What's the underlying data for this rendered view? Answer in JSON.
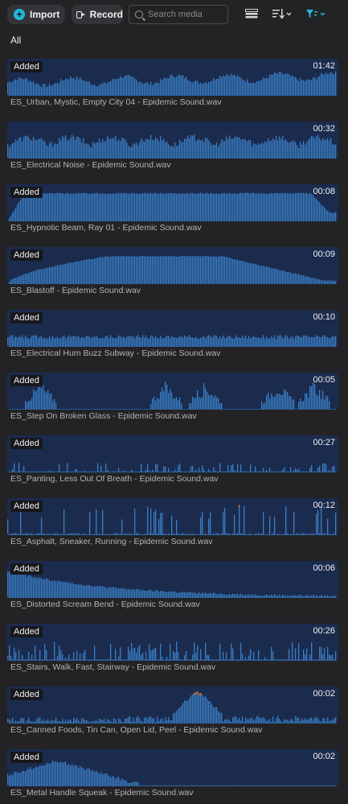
{
  "toolbar": {
    "import_label": "Import",
    "record_label": "Record",
    "search_placeholder": "Search media"
  },
  "section_label": "All",
  "colors": {
    "wave": "#3a7fc4",
    "peak": "#e07a3a",
    "wave_bg": "#1b2b4e"
  },
  "items": [
    {
      "badge": "Added",
      "duration": "01:42",
      "name": "ES_Urban, Mystic, Empty City 04 - Epidemic Sound.wav",
      "shape": "ramp",
      "has_badge": true
    },
    {
      "badge": "",
      "duration": "00:32",
      "name": "ES_Electrical Noise - Epidemic Sound.wav",
      "shape": "noise",
      "has_badge": false
    },
    {
      "badge": "Added",
      "duration": "00:08",
      "name": "ES_Hypnotic Beam, Ray 01 - Epidemic Sound.wav",
      "shape": "block",
      "has_badge": true
    },
    {
      "badge": "Added",
      "duration": "00:09",
      "name": "ES_Blastoff - Epidemic Sound.wav",
      "shape": "arch",
      "has_badge": true
    },
    {
      "badge": "Added",
      "duration": "00:10",
      "name": "ES_Electrical Hum Buzz Subway - Epidemic Sound.wav",
      "shape": "flat",
      "has_badge": true
    },
    {
      "badge": "Added",
      "duration": "00:05",
      "name": "ES_Step On Broken Glass - Epidemic Sound.wav",
      "shape": "bursts",
      "has_badge": true
    },
    {
      "badge": "Added",
      "duration": "00:27",
      "name": "ES_Panting, Less Out Of Breath - Epidemic Sound.wav",
      "shape": "sparse",
      "has_badge": true
    },
    {
      "badge": "Added",
      "duration": "00:12",
      "name": "ES_Asphalt, Sneaker, Running - Epidemic Sound.wav",
      "shape": "spikes",
      "has_badge": true
    },
    {
      "badge": "Added",
      "duration": "00:06",
      "name": "ES_Distorted Scream Bend - Epidemic Sound.wav",
      "shape": "decay",
      "has_badge": true
    },
    {
      "badge": "Added",
      "duration": "00:26",
      "name": "ES_Stairs, Walk, Fast, Stairway - Epidemic Sound.wav",
      "shape": "steps",
      "has_badge": true
    },
    {
      "badge": "Added",
      "duration": "00:02",
      "name": "ES_Canned Foods, Tin Can, Open Lid, Peel - Epidemic Sound.wav",
      "shape": "can",
      "has_badge": true
    },
    {
      "badge": "Added",
      "duration": "00:02",
      "name": "ES_Metal Handle Squeak - Epidemic Sound.wav",
      "shape": "squeak",
      "has_badge": true
    }
  ]
}
